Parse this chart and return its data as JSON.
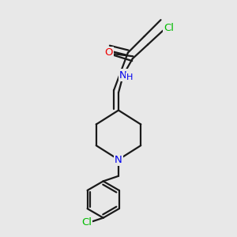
{
  "background_color": "#e8e8e8",
  "bond_color": "#1a1a1a",
  "atom_colors": {
    "Cl": "#00bb00",
    "O": "#ee0000",
    "N": "#0000ee"
  },
  "figsize": [
    3.0,
    3.0
  ],
  "dpi": 100
}
